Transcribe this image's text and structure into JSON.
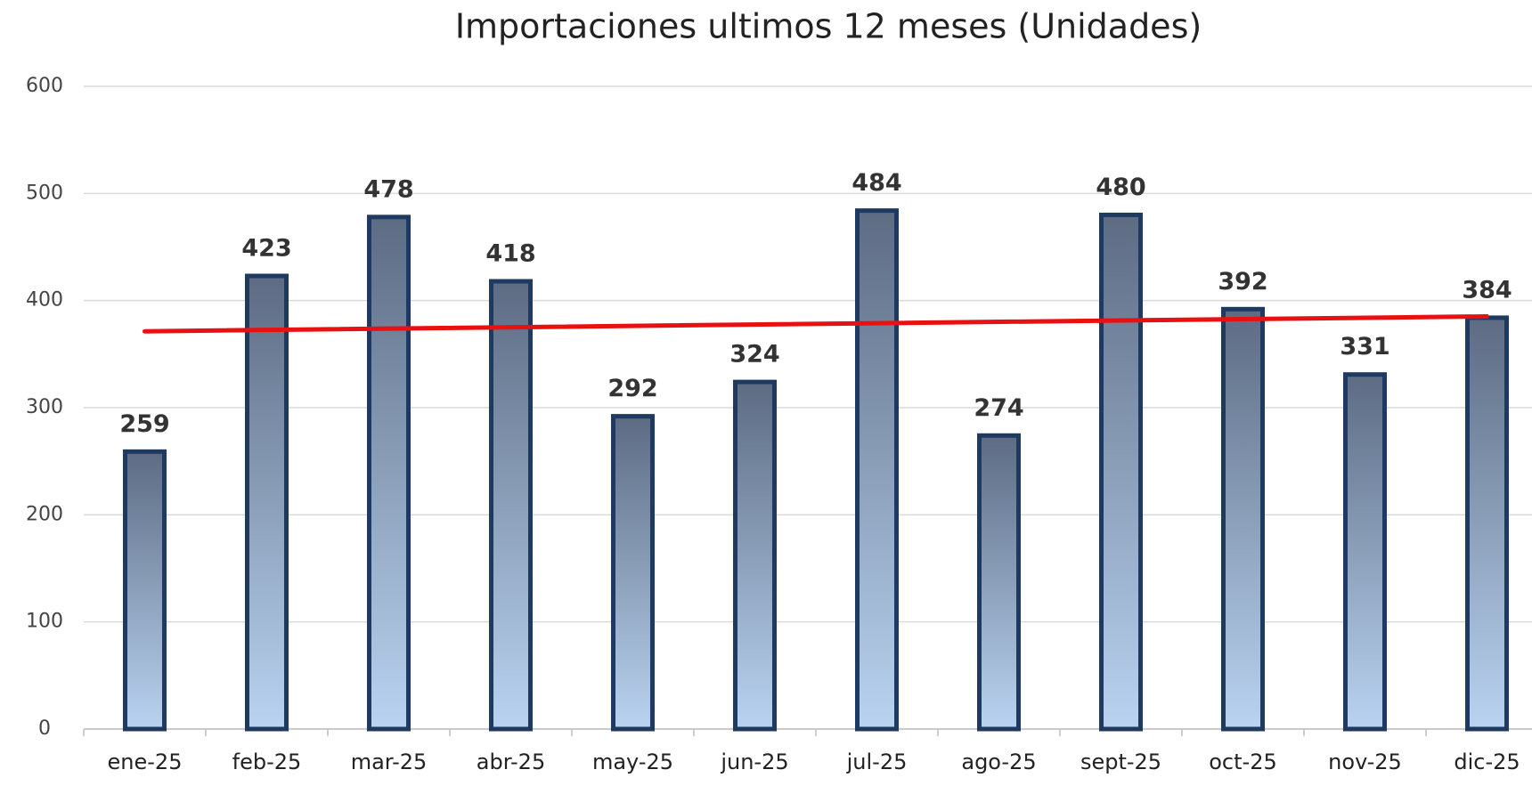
{
  "chart_data": {
    "type": "bar",
    "title": "Importaciones ultimos 12 meses (Unidades)",
    "categories": [
      "ene-25",
      "feb-25",
      "mar-25",
      "abr-25",
      "may-25",
      "jun-25",
      "jul-25",
      "ago-25",
      "sept-25",
      "oct-25",
      "nov-25",
      "dic-25"
    ],
    "values": [
      259,
      423,
      478,
      418,
      292,
      324,
      484,
      274,
      480,
      392,
      331,
      384
    ],
    "color": "#1f3a60",
    "trendline": "linear",
    "trendline_color": "#e81010",
    "ylim": [
      0,
      600
    ],
    "yticks": [
      0,
      100,
      200,
      300,
      400,
      500,
      600
    ],
    "grid": true
  }
}
